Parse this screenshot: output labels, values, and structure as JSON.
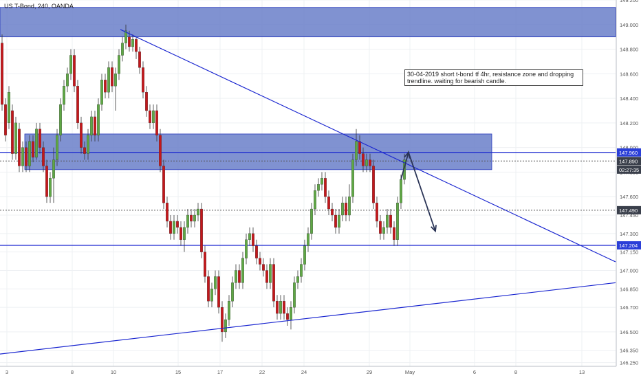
{
  "header": {
    "symbol_label": "US T-Bond, 240, OANDA"
  },
  "annotation": {
    "text": "30-04-2019 short t-bond tf 4hr, resistance zone and dropping trendline. waiting for bearish candle."
  },
  "colors": {
    "up": "#5fa845",
    "down": "#c4171b",
    "zone": "#6a7fc9",
    "zone_border": "#2233bb",
    "line": "#1a26d0",
    "arrow": "#2a3456",
    "label_blue": "#2b3fd8",
    "label_dark": "#3a3f4b",
    "grid": "#eef0f3"
  },
  "chart_data": {
    "type": "candlestick",
    "title": "US T-Bond, 240, OANDA",
    "ylim": [
      146.22,
      149.2
    ],
    "y_ticks": [
      "149.200",
      "149.000",
      "148.800",
      "148.600",
      "148.400",
      "148.200",
      "148.000",
      "147.800",
      "147.600",
      "147.450",
      "147.300",
      "147.150",
      "147.000",
      "146.850",
      "146.700",
      "146.500",
      "146.350",
      "146.250"
    ],
    "x_ticks": [
      "3",
      "8",
      "10",
      "15",
      "17",
      "22",
      "24",
      "29",
      "May",
      "6",
      "8",
      "13"
    ],
    "price_labels": [
      {
        "text": "147.960",
        "value": 147.96,
        "style": "blue"
      },
      {
        "text": "147.890",
        "value": 147.89,
        "style": "dark"
      },
      {
        "text": "02:27:35",
        "value": 147.82,
        "style": "dark"
      },
      {
        "text": "147.490",
        "value": 147.49,
        "style": "dark"
      },
      {
        "text": "147.204",
        "value": 147.204,
        "style": "blue"
      }
    ],
    "resistance_zones": [
      {
        "from": 148.9,
        "to": 149.14,
        "x_end": "right"
      },
      {
        "from": 147.82,
        "to": 148.11
      }
    ],
    "horizontal_levels": [
      147.96,
      147.204
    ],
    "dashed_levels": [
      147.49,
      147.89
    ],
    "trendlines": [
      {
        "name": "descending",
        "from": [
          175,
          148.96
        ],
        "to": [
          895,
          147.07
        ]
      },
      {
        "name": "ascending",
        "from": [
          0,
          146.32
        ],
        "to": [
          895,
          146.9
        ]
      }
    ],
    "arrow_path": [
      [
        583,
        147.74
      ],
      [
        594,
        147.96
      ],
      [
        633,
        147.32
      ]
    ],
    "candles": [
      [
        3,
        148.85,
        148.35,
        148.92,
        148.3
      ],
      [
        8,
        148.35,
        148.1,
        148.4,
        148.05
      ],
      [
        13,
        148.2,
        148.45,
        148.5,
        148.15
      ],
      [
        18,
        148.3,
        147.95,
        148.35,
        147.9
      ],
      [
        23,
        147.95,
        148.2,
        148.25,
        147.9
      ],
      [
        28,
        148.15,
        147.85,
        148.2,
        147.8
      ],
      [
        33,
        147.85,
        148.0,
        148.05,
        147.8
      ],
      [
        38,
        148.0,
        147.85,
        148.05,
        147.8
      ],
      [
        43,
        147.85,
        148.05,
        148.1,
        147.8
      ],
      [
        48,
        148.05,
        147.92,
        148.1,
        147.88
      ],
      [
        53,
        147.92,
        148.15,
        148.2,
        147.9
      ],
      [
        58,
        148.15,
        148.0,
        148.2,
        147.95
      ],
      [
        63,
        148.0,
        147.85,
        148.05,
        147.8
      ],
      [
        68,
        147.85,
        147.6,
        147.9,
        147.55
      ],
      [
        73,
        147.6,
        147.75,
        147.8,
        147.55
      ],
      [
        78,
        147.75,
        147.9,
        148.0,
        147.55
      ],
      [
        83,
        147.9,
        148.1,
        148.15,
        147.85
      ],
      [
        88,
        148.1,
        148.35,
        148.4,
        148.05
      ],
      [
        93,
        148.35,
        148.5,
        148.55,
        148.3
      ],
      [
        98,
        148.5,
        148.6,
        148.65,
        148.45
      ],
      [
        103,
        148.6,
        148.75,
        148.8,
        148.55
      ],
      [
        108,
        148.75,
        148.5,
        148.8,
        148.45
      ],
      [
        113,
        148.5,
        148.2,
        148.55,
        148.15
      ],
      [
        118,
        148.2,
        148.0,
        148.25,
        147.95
      ],
      [
        123,
        148.0,
        147.95,
        148.05,
        147.9
      ],
      [
        128,
        147.95,
        148.1,
        148.15,
        147.9
      ],
      [
        133,
        148.1,
        148.25,
        148.3,
        148.05
      ],
      [
        138,
        148.25,
        148.1,
        148.3,
        148.05
      ],
      [
        143,
        148.1,
        148.35,
        148.4,
        148.05
      ],
      [
        148,
        148.35,
        148.55,
        148.6,
        148.3
      ],
      [
        153,
        148.55,
        148.45,
        148.6,
        148.4
      ],
      [
        158,
        148.45,
        148.65,
        148.7,
        148.4
      ],
      [
        163,
        148.65,
        148.5,
        148.7,
        148.45
      ],
      [
        168,
        148.5,
        148.6,
        148.65,
        148.3
      ],
      [
        173,
        148.6,
        148.75,
        148.8,
        148.55
      ],
      [
        178,
        148.75,
        148.85,
        148.9,
        148.7
      ],
      [
        183,
        148.85,
        148.95,
        149.0,
        148.8
      ],
      [
        188,
        148.9,
        148.82,
        148.95,
        148.78
      ],
      [
        193,
        148.82,
        148.88,
        148.92,
        148.78
      ],
      [
        198,
        148.88,
        148.78,
        148.9,
        148.72
      ],
      [
        203,
        148.78,
        148.65,
        148.82,
        148.6
      ],
      [
        208,
        148.65,
        148.45,
        148.7,
        148.4
      ],
      [
        213,
        148.45,
        148.3,
        148.5,
        148.25
      ],
      [
        218,
        148.3,
        148.2,
        148.35,
        148.15
      ],
      [
        223,
        148.2,
        148.3,
        148.35,
        148.15
      ],
      [
        228,
        148.3,
        148.1,
        148.35,
        148.05
      ],
      [
        233,
        148.1,
        147.85,
        148.15,
        147.8
      ],
      [
        238,
        147.85,
        147.55,
        147.9,
        147.5
      ],
      [
        243,
        147.55,
        147.4,
        147.6,
        147.35
      ],
      [
        248,
        147.4,
        147.3,
        147.45,
        147.25
      ],
      [
        253,
        147.3,
        147.4,
        147.45,
        147.25
      ],
      [
        258,
        147.4,
        147.35,
        147.45,
        147.3
      ],
      [
        263,
        147.35,
        147.25,
        147.4,
        147.2
      ],
      [
        268,
        147.25,
        147.35,
        147.4,
        147.15
      ],
      [
        273,
        147.35,
        147.45,
        147.5,
        147.3
      ],
      [
        278,
        147.45,
        147.4,
        147.5,
        147.35
      ],
      [
        283,
        147.4,
        147.45,
        147.5,
        147.35
      ],
      [
        288,
        147.45,
        147.5,
        147.55,
        147.4
      ],
      [
        293,
        147.5,
        147.15,
        147.55,
        147.1
      ],
      [
        298,
        147.15,
        146.95,
        147.2,
        146.9
      ],
      [
        303,
        146.95,
        146.75,
        147.0,
        146.7
      ],
      [
        308,
        146.75,
        146.85,
        146.9,
        146.7
      ],
      [
        313,
        146.85,
        146.95,
        147.0,
        146.8
      ],
      [
        318,
        146.95,
        146.7,
        147.0,
        146.65
      ],
      [
        323,
        146.7,
        146.5,
        146.75,
        146.42
      ],
      [
        328,
        146.5,
        146.6,
        146.65,
        146.45
      ],
      [
        333,
        146.6,
        146.75,
        146.8,
        146.55
      ],
      [
        338,
        146.75,
        146.9,
        146.95,
        146.7
      ],
      [
        343,
        146.9,
        147.0,
        147.05,
        146.85
      ],
      [
        348,
        147.0,
        146.9,
        147.05,
        146.85
      ],
      [
        353,
        146.9,
        147.1,
        147.15,
        146.85
      ],
      [
        358,
        147.1,
        147.25,
        147.3,
        147.05
      ],
      [
        363,
        147.25,
        147.3,
        147.35,
        147.2
      ],
      [
        368,
        147.3,
        147.2,
        147.35,
        147.15
      ],
      [
        373,
        147.2,
        147.1,
        147.25,
        147.05
      ],
      [
        378,
        147.1,
        147.05,
        147.15,
        147.0
      ],
      [
        383,
        147.05,
        147.0,
        147.1,
        146.95
      ],
      [
        388,
        147.0,
        146.9,
        147.05,
        146.85
      ],
      [
        393,
        146.9,
        147.05,
        147.1,
        146.85
      ],
      [
        398,
        147.05,
        146.75,
        147.1,
        146.7
      ],
      [
        403,
        146.75,
        146.65,
        146.8,
        146.6
      ],
      [
        408,
        146.65,
        146.75,
        146.8,
        146.6
      ],
      [
        413,
        146.75,
        146.65,
        146.8,
        146.6
      ],
      [
        418,
        146.65,
        146.6,
        146.7,
        146.55
      ],
      [
        423,
        146.6,
        146.7,
        146.75,
        146.52
      ],
      [
        428,
        146.7,
        146.9,
        146.95,
        146.65
      ],
      [
        433,
        146.9,
        146.95,
        147.0,
        146.85
      ],
      [
        438,
        146.95,
        147.05,
        147.1,
        146.9
      ],
      [
        443,
        147.05,
        147.2,
        147.25,
        147.0
      ],
      [
        448,
        147.2,
        147.3,
        147.35,
        147.15
      ],
      [
        453,
        147.3,
        147.5,
        147.55,
        147.25
      ],
      [
        458,
        147.5,
        147.65,
        147.7,
        147.45
      ],
      [
        463,
        147.65,
        147.7,
        147.75,
        147.6
      ],
      [
        468,
        147.7,
        147.75,
        147.8,
        147.65
      ],
      [
        473,
        147.75,
        147.6,
        147.8,
        147.55
      ],
      [
        478,
        147.6,
        147.5,
        147.65,
        147.45
      ],
      [
        483,
        147.5,
        147.45,
        147.55,
        147.4
      ],
      [
        488,
        147.45,
        147.35,
        147.5,
        147.3
      ],
      [
        493,
        147.35,
        147.45,
        147.5,
        147.3
      ],
      [
        498,
        147.45,
        147.55,
        147.6,
        147.4
      ],
      [
        503,
        147.55,
        147.45,
        147.6,
        147.4
      ],
      [
        508,
        147.45,
        147.6,
        147.7,
        147.4
      ],
      [
        513,
        147.6,
        147.9,
        147.95,
        147.55
      ],
      [
        518,
        147.9,
        148.05,
        148.15,
        147.85
      ],
      [
        523,
        148.05,
        147.95,
        148.1,
        147.9
      ],
      [
        528,
        147.95,
        147.85,
        148.0,
        147.8
      ],
      [
        533,
        147.85,
        147.9,
        147.95,
        147.8
      ],
      [
        538,
        147.9,
        147.85,
        147.95,
        147.8
      ],
      [
        543,
        147.85,
        147.55,
        147.9,
        147.5
      ],
      [
        548,
        147.55,
        147.4,
        147.6,
        147.35
      ],
      [
        553,
        147.4,
        147.3,
        147.45,
        147.25
      ],
      [
        558,
        147.3,
        147.35,
        147.4,
        147.25
      ],
      [
        563,
        147.35,
        147.45,
        147.5,
        147.3
      ],
      [
        568,
        147.45,
        147.35,
        147.5,
        147.3
      ],
      [
        573,
        147.35,
        147.25,
        147.4,
        147.2
      ],
      [
        578,
        147.25,
        147.55,
        147.6,
        147.2
      ],
      [
        583,
        147.55,
        147.74,
        147.78,
        147.5
      ],
      [
        588,
        147.74,
        147.9,
        147.95,
        147.7
      ]
    ]
  }
}
